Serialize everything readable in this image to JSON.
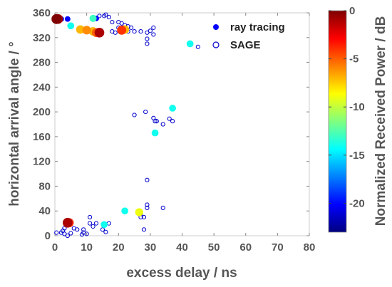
{
  "chart_data": {
    "type": "scatter",
    "xlabel": "excess delay / ns",
    "ylabel": "horizontal arrival angle / °",
    "xlim": [
      0,
      80
    ],
    "ylim": [
      0,
      360
    ],
    "xticks": [
      0,
      10,
      20,
      30,
      40,
      50,
      60,
      70,
      80
    ],
    "yticks": [
      0,
      40,
      80,
      120,
      160,
      200,
      240,
      280,
      320,
      360
    ],
    "grid": false,
    "legend_position": "top-right",
    "colorbar": {
      "label": "Normalized Received Power / dB",
      "range": [
        -23,
        0
      ],
      "ticks": [
        0,
        -5,
        -10,
        -15,
        -20
      ]
    },
    "series": [
      {
        "name": "ray tracing",
        "marker": "filled-circle",
        "points": [
          {
            "x": 0.5,
            "y": 350,
            "power": 0
          },
          {
            "x": 1,
            "y": 350,
            "power": -1
          },
          {
            "x": 2,
            "y": 350,
            "power": -20
          },
          {
            "x": 4,
            "y": 350,
            "power": -20
          },
          {
            "x": 5,
            "y": 339,
            "power": -14
          },
          {
            "x": 8,
            "y": 333,
            "power": -7
          },
          {
            "x": 10,
            "y": 332,
            "power": -6
          },
          {
            "x": 12,
            "y": 330,
            "power": -7
          },
          {
            "x": 13,
            "y": 328,
            "power": -5
          },
          {
            "x": 14,
            "y": 328,
            "power": -1
          },
          {
            "x": 12,
            "y": 351,
            "power": -13
          },
          {
            "x": 13,
            "y": 351,
            "power": -20
          },
          {
            "x": 21,
            "y": 332,
            "power": -4
          },
          {
            "x": 22,
            "y": 333,
            "power": -7
          },
          {
            "x": 42.5,
            "y": 310,
            "power": -14
          },
          {
            "x": 37,
            "y": 206,
            "power": -14
          },
          {
            "x": 31.5,
            "y": 166,
            "power": -14
          },
          {
            "x": 4,
            "y": 21,
            "power": -1
          },
          {
            "x": 4.5,
            "y": 21,
            "power": -4
          },
          {
            "x": 15.5,
            "y": 18,
            "power": -14
          },
          {
            "x": 22,
            "y": 40,
            "power": -14
          },
          {
            "x": 26.5,
            "y": 38,
            "power": -9
          }
        ]
      },
      {
        "name": "SAGE",
        "marker": "open-circle",
        "points": [
          {
            "x": 14,
            "y": 355
          },
          {
            "x": 15.5,
            "y": 355
          },
          {
            "x": 17,
            "y": 353
          },
          {
            "x": 16,
            "y": 357
          },
          {
            "x": 18,
            "y": 345
          },
          {
            "x": 20,
            "y": 345
          },
          {
            "x": 21,
            "y": 343
          },
          {
            "x": 22,
            "y": 340
          },
          {
            "x": 23,
            "y": 338
          },
          {
            "x": 24,
            "y": 336
          },
          {
            "x": 20,
            "y": 336
          },
          {
            "x": 21.5,
            "y": 330
          },
          {
            "x": 23,
            "y": 330
          },
          {
            "x": 25,
            "y": 330
          },
          {
            "x": 27,
            "y": 330
          },
          {
            "x": 18,
            "y": 330
          },
          {
            "x": 19,
            "y": 328
          },
          {
            "x": 29,
            "y": 328
          },
          {
            "x": 30,
            "y": 331
          },
          {
            "x": 31,
            "y": 336
          },
          {
            "x": 31,
            "y": 325
          },
          {
            "x": 29,
            "y": 318
          },
          {
            "x": 29,
            "y": 310
          },
          {
            "x": 45,
            "y": 305
          },
          {
            "x": 25,
            "y": 195
          },
          {
            "x": 28.5,
            "y": 200
          },
          {
            "x": 31,
            "y": 190
          },
          {
            "x": 31.5,
            "y": 185
          },
          {
            "x": 32,
            "y": 185
          },
          {
            "x": 34,
            "y": 180
          },
          {
            "x": 36,
            "y": 189
          },
          {
            "x": 37,
            "y": 185
          },
          {
            "x": 29,
            "y": 90
          },
          {
            "x": 29,
            "y": 50
          },
          {
            "x": 29,
            "y": 45
          },
          {
            "x": 34,
            "y": 45
          },
          {
            "x": 27,
            "y": 35
          },
          {
            "x": 27,
            "y": 30
          },
          {
            "x": 28,
            "y": 30
          },
          {
            "x": 28,
            "y": 10
          },
          {
            "x": 11,
            "y": 30
          },
          {
            "x": 11,
            "y": 20
          },
          {
            "x": 12,
            "y": 15
          },
          {
            "x": 15,
            "y": 10
          },
          {
            "x": 16,
            "y": 6
          },
          {
            "x": 17,
            "y": 20
          },
          {
            "x": 13,
            "y": 20
          },
          {
            "x": 7,
            "y": 10
          },
          {
            "x": 9,
            "y": 10
          },
          {
            "x": 9,
            "y": 5
          },
          {
            "x": 10,
            "y": 3
          },
          {
            "x": 8.5,
            "y": 2
          },
          {
            "x": 0.5,
            "y": 5
          },
          {
            "x": 2,
            "y": 5
          },
          {
            "x": 3,
            "y": 3
          },
          {
            "x": 4,
            "y": 0
          },
          {
            "x": 5,
            "y": 4
          },
          {
            "x": 6,
            "y": 12
          },
          {
            "x": 3,
            "y": 12
          },
          {
            "x": 2.5,
            "y": 8
          }
        ]
      }
    ]
  }
}
